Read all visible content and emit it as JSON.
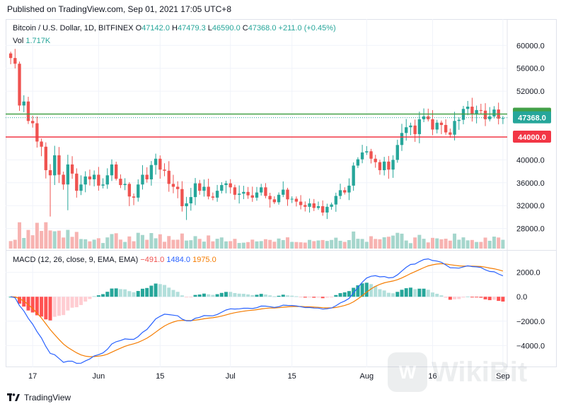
{
  "published": "Published on TradingView.com, Sep 01, 2021 17:05 UTC+8",
  "legend": {
    "title": "Bitcoin / U.S. Dollar, 1D, BITFINEX",
    "o_label": "O",
    "o_value": "47142.0",
    "h_label": "H",
    "h_value": "47479.3",
    "l_label": "L",
    "l_value": "46590.0",
    "c_label": "C",
    "c_value": "47368.0",
    "change": "+211.0 (+0.45%)",
    "vol_label": "Vol",
    "vol_value": "1.717K"
  },
  "macd_legend": {
    "title": "MACD (12, 26, close, 9, EMA, EMA)",
    "hist": "−491.0",
    "macd": "1484.0",
    "signal": "1975.0"
  },
  "footer": {
    "brand": "TradingView"
  },
  "watermark": "WikiBit",
  "colors": {
    "up": "#26a69a",
    "down": "#ef5350",
    "green_line": "#43a047",
    "red_line": "#f23645",
    "macd": "#2962ff",
    "signal": "#f57c00",
    "grid": "#f0f3fa"
  },
  "chart_data": [
    {
      "type": "candlestick",
      "ylim": [
        24500,
        63000
      ],
      "y_ticks": [
        "60000.0",
        "56000.0",
        "52000.0",
        "48000.0",
        "44000.0",
        "40000.0",
        "36000.0",
        "32000.0",
        "28000.0"
      ],
      "x_ticks": [
        {
          "label": "17",
          "index": 5
        },
        {
          "label": "Jun",
          "index": 20
        },
        {
          "label": "15",
          "index": 34
        },
        {
          "label": "Jul",
          "index": 50
        },
        {
          "label": "15",
          "index": 64
        },
        {
          "label": "Aug",
          "index": 81
        },
        {
          "label": "16",
          "index": 96
        },
        {
          "label": "Sep",
          "index": 112
        }
      ],
      "horizontal_lines": [
        {
          "price": 48000,
          "label": "48000.0",
          "color": "#43a047"
        },
        {
          "price": 44000,
          "label": "44000.0",
          "color": "#f23645"
        }
      ],
      "last_price": {
        "price": 47368,
        "label": "47368.0"
      },
      "ohlc_note": "daily BTC/USD, 113 candles",
      "closes": [
        57800,
        56800,
        49500,
        50200,
        46800,
        46400,
        43200,
        42300,
        38200,
        37300,
        40800,
        37400,
        35700,
        39200,
        37600,
        34600,
        35700,
        37100,
        36600,
        37400,
        35500,
        35700,
        37300,
        39200,
        36700,
        35600,
        35800,
        33600,
        33400,
        35700,
        37400,
        36600,
        39100,
        40200,
        38300,
        38100,
        35800,
        35300,
        34900,
        31900,
        32400,
        33500,
        35900,
        34600,
        35300,
        33600,
        33400,
        34600,
        35600,
        35900,
        35200,
        33900,
        34100,
        34400,
        33800,
        33400,
        34300,
        35200,
        33700,
        33100,
        32600,
        33900,
        34800,
        33100,
        33200,
        32700,
        32100,
        31800,
        32400,
        31600,
        31900,
        30800,
        31800,
        32200,
        33700,
        34700,
        34300,
        35500,
        39000,
        40100,
        41300,
        41500,
        40200,
        39600,
        38200,
        39700,
        38300,
        40000,
        42600,
        44700,
        45700,
        46000,
        44500,
        47100,
        47600,
        47100,
        45300,
        46500,
        46100,
        44800,
        44400,
        46800,
        47000,
        48900,
        49300,
        48000,
        48700,
        48600,
        47100,
        47600,
        48800,
        47200,
        47300
      ],
      "volume_note": "volume bars scaled relative; bottom of price pane",
      "macd_ylim": [
        -5600,
        3600
      ],
      "macd_ticks": [
        "2000.0",
        "0.0",
        "−2000.0",
        "−4000.0"
      ]
    }
  ]
}
